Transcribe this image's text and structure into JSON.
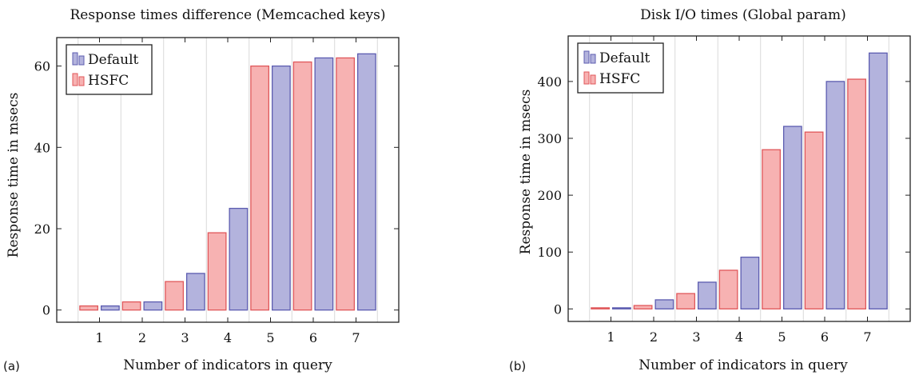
{
  "colors": {
    "default_fill": "#b3b3dd",
    "default_stroke": "#5c5cb0",
    "hsfc_fill": "#f7b2b2",
    "hsfc_stroke": "#e0575a",
    "grid": "#d9d9d9",
    "axis": "#222222"
  },
  "chart_data": [
    {
      "type": "bar",
      "panel_label": "(a)",
      "title": "Response times difference (Memcached keys)",
      "xlabel": "Number of indicators in query",
      "ylabel": "Response time in msecs",
      "categories": [
        "1",
        "2",
        "3",
        "4",
        "5",
        "6",
        "7"
      ],
      "yticks": [
        0,
        20,
        40,
        60
      ],
      "ylim": [
        -3,
        67
      ],
      "grid": "vertical",
      "legend_position": "top-left",
      "series": [
        {
          "name": "Default",
          "values": [
            1,
            2,
            9,
            25,
            60,
            62,
            63
          ]
        },
        {
          "name": "HSFC",
          "values": [
            1,
            2,
            7,
            19,
            60,
            61,
            62
          ]
        }
      ]
    },
    {
      "type": "bar",
      "panel_label": "(b)",
      "title": "Disk I/O times (Global param)",
      "xlabel": "Number of indicators in query",
      "ylabel": "Response time in msecs",
      "categories": [
        "1",
        "2",
        "3",
        "4",
        "5",
        "6",
        "7"
      ],
      "yticks": [
        0,
        100,
        200,
        300,
        400
      ],
      "ylim": [
        -22,
        480
      ],
      "grid": "vertical",
      "legend_position": "top-left",
      "series": [
        {
          "name": "Default",
          "values": [
            2,
            16,
            47,
            91,
            321,
            400,
            450
          ]
        },
        {
          "name": "HSFC",
          "values": [
            2,
            6,
            27,
            68,
            280,
            311,
            404
          ]
        }
      ]
    }
  ]
}
